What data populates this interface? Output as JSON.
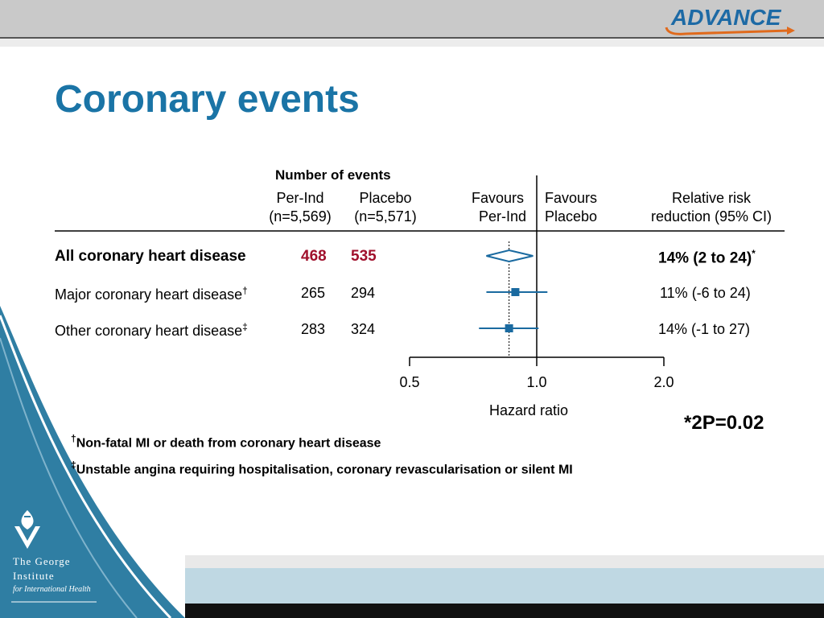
{
  "header": {
    "logo_text": "ADVANCE"
  },
  "slide": {
    "title": "Coronary events"
  },
  "table": {
    "group_header": "Number of events",
    "col_a_name": "Per-Ind",
    "col_a_n": "(n=5,569)",
    "col_b_name": "Placebo",
    "col_b_n": "(n=5,571)",
    "favours_left_1": "Favours",
    "favours_left_2": "Per-Ind",
    "favours_right_1": "Favours",
    "favours_right_2": "Placebo",
    "rrr_header_1": "Relative risk",
    "rrr_header_2": "reduction (95% CI)"
  },
  "rows": [
    {
      "label": "All coronary heart disease",
      "mark": "",
      "a": "468",
      "b": "535",
      "rrr": "14% (2 to 24)",
      "rrr_mark": "*"
    },
    {
      "label": "Major coronary heart disease",
      "mark": "†",
      "a": "265",
      "b": "294",
      "rrr": "11% (-6 to 24)",
      "rrr_mark": ""
    },
    {
      "label": "Other coronary heart disease",
      "mark": "‡",
      "a": "283",
      "b": "324",
      "rrr": "14% (-1 to 27)",
      "rrr_mark": ""
    }
  ],
  "footnotes": {
    "f1_mark": "†",
    "f1": "Non-fatal MI or death from coronary heart disease",
    "f2_mark": "‡",
    "f2": "Unstable angina requiring hospitalisation, coronary revascularisation or silent MI"
  },
  "pvalue": "*2P=0.02",
  "institute": {
    "line1": "The George",
    "line2": "Institute",
    "line3": "for International Health"
  },
  "chart_data": {
    "type": "forest",
    "xlabel": "Hazard ratio",
    "scale": "log",
    "xlim": [
      0.5,
      2.0
    ],
    "ticks": [
      "0.5",
      "1.0",
      "2.0"
    ],
    "tick_values": [
      0.5,
      1.0,
      2.0
    ],
    "reference_line": 1.0,
    "overall_estimate_line": 0.86,
    "points": [
      {
        "name": "All coronary heart disease",
        "hr": 0.86,
        "lo": 0.76,
        "hi": 0.98,
        "marker": "diamond"
      },
      {
        "name": "Major coronary heart disease",
        "hr": 0.89,
        "lo": 0.76,
        "hi": 1.06,
        "marker": "square"
      },
      {
        "name": "Other coronary heart disease",
        "hr": 0.86,
        "lo": 0.73,
        "hi": 1.01,
        "marker": "square"
      }
    ],
    "colors": {
      "marker": "#1a6aa0",
      "axis": "#000000"
    }
  }
}
